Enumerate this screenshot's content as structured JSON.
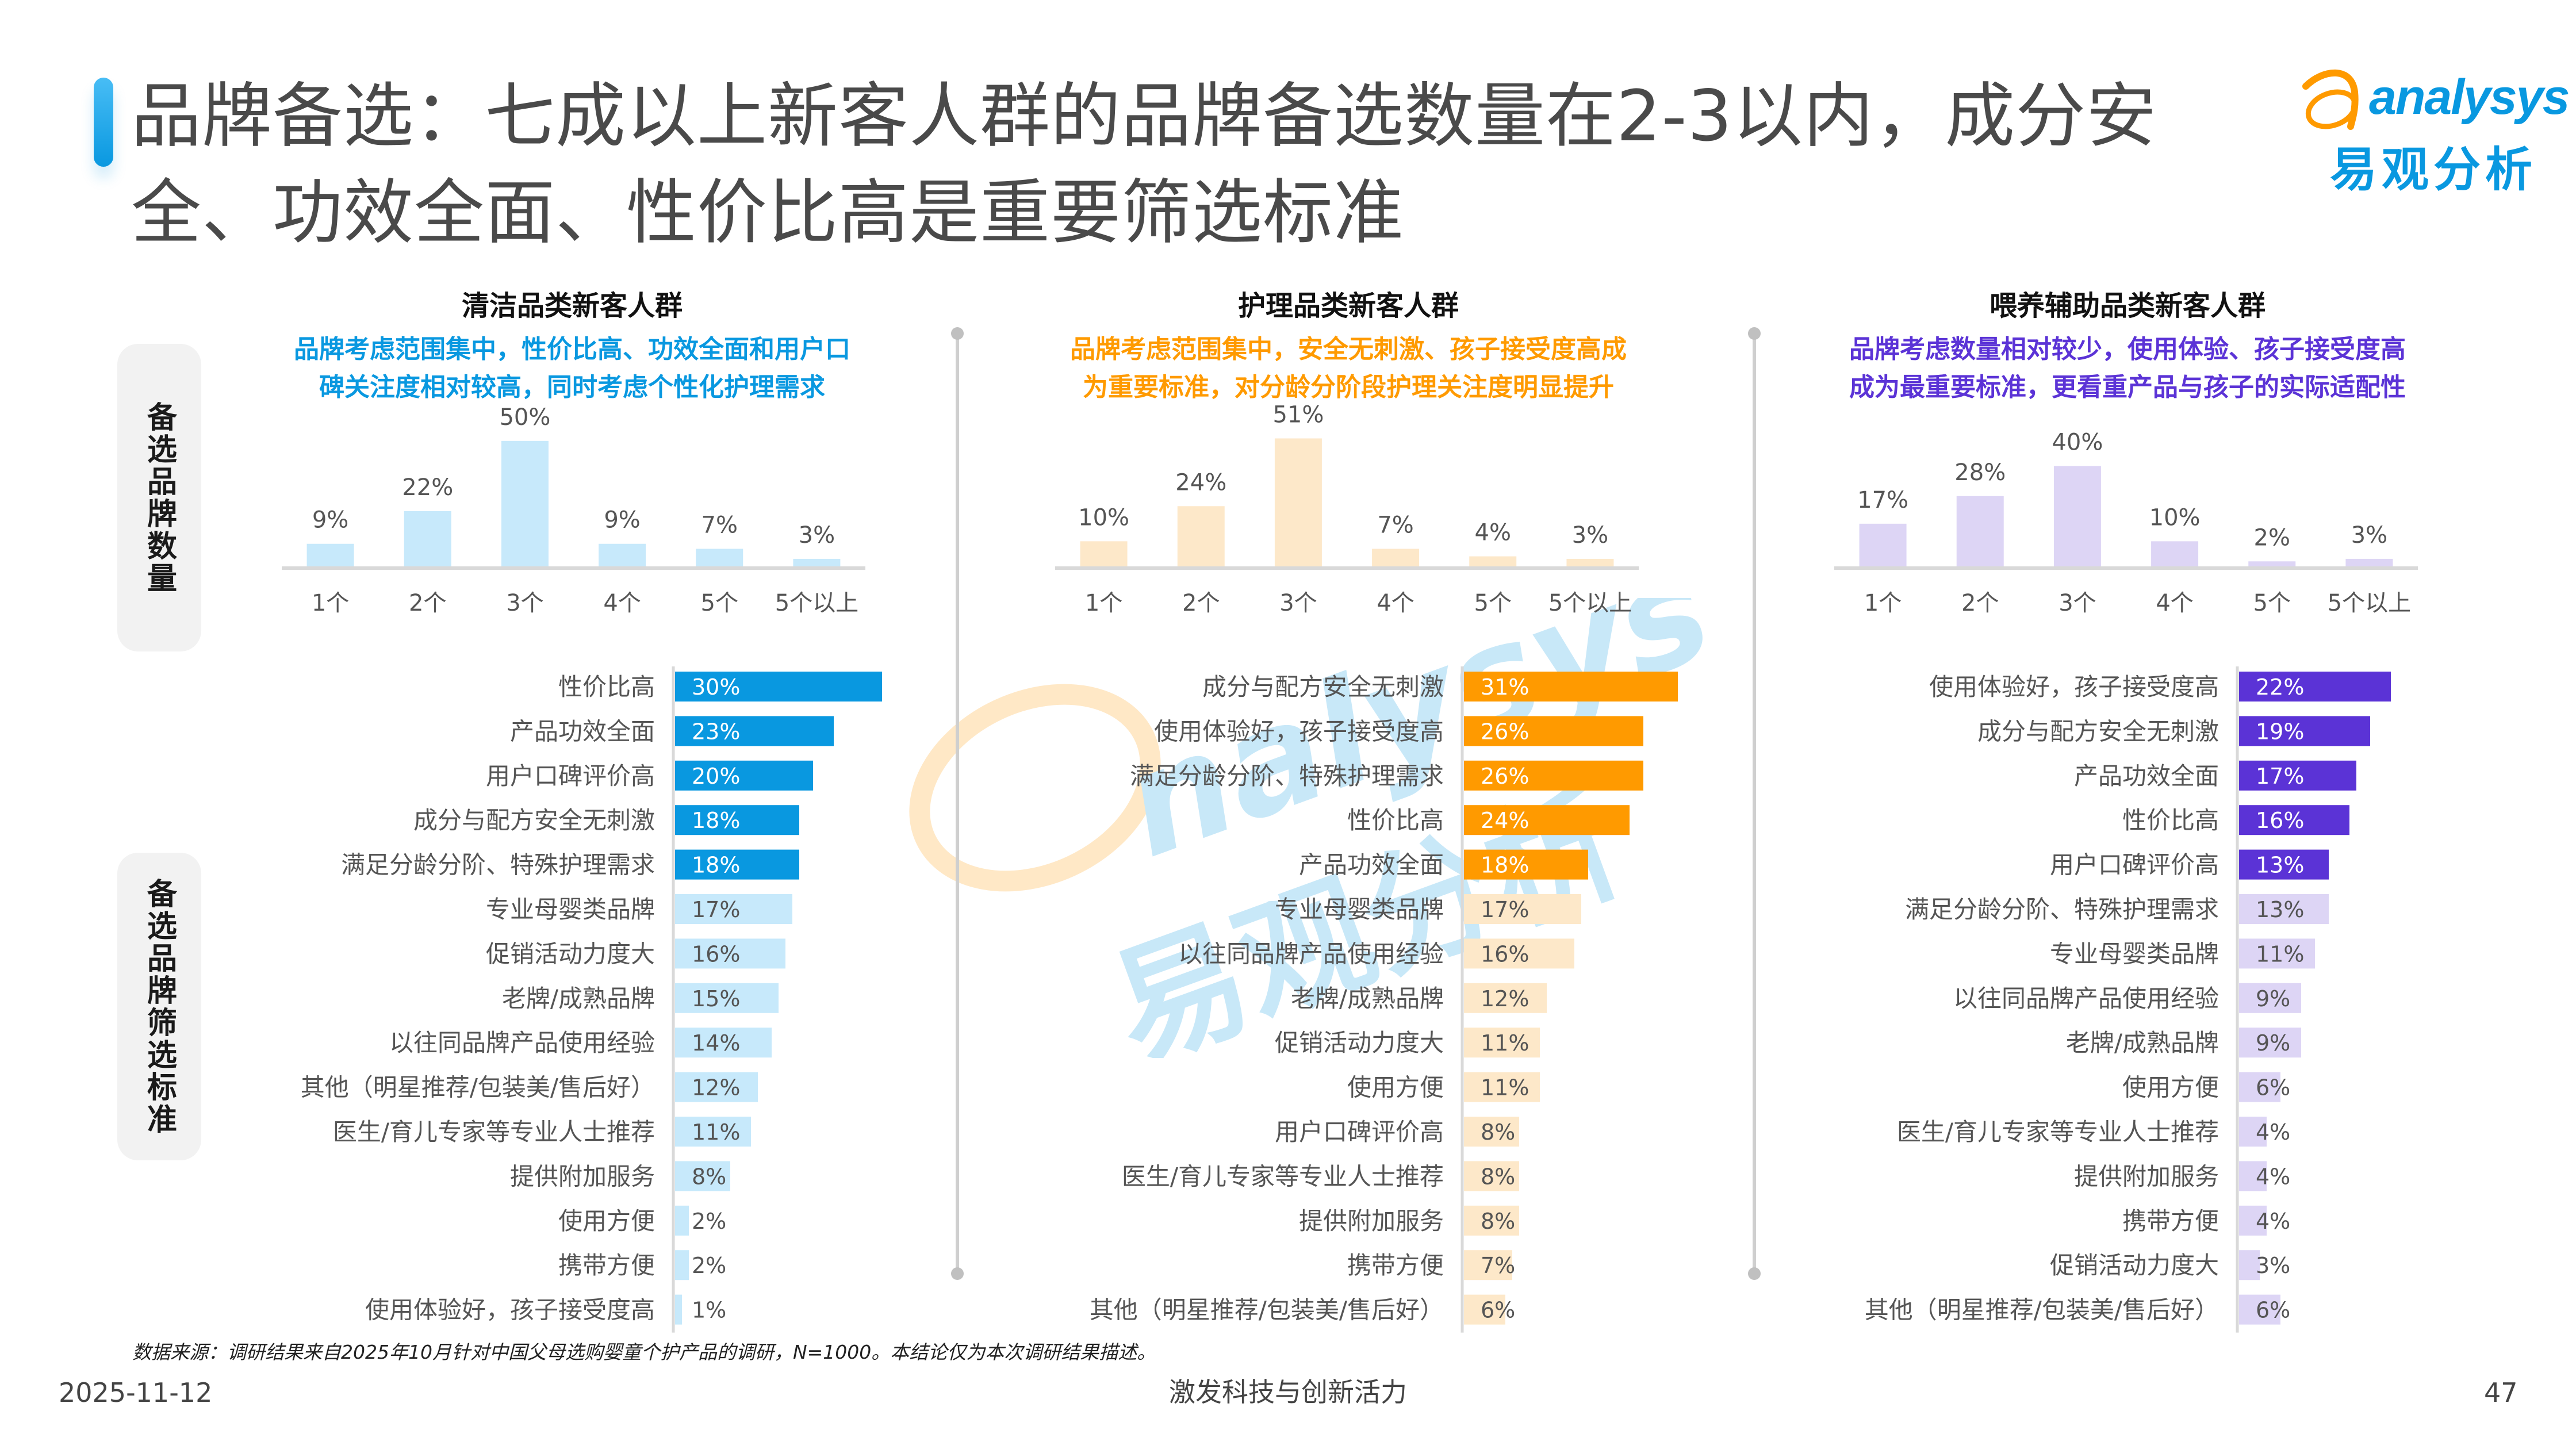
{
  "header": {
    "title": "品牌备选：七成以上新客人群的品牌备选数量在2-3以内，成分安全、功效全面、性价比高是重要筛选标准",
    "logo_en": "analysys",
    "logo_cn": "易观分析"
  },
  "side_labels": {
    "count": "备选品牌数量",
    "criteria": "备选品牌筛选标准"
  },
  "colors": {
    "clean_dark": "#0998e0",
    "clean_light": "#c7e9fb",
    "care_dark": "#ff9a00",
    "care_light": "#fde8c9",
    "feed_dark": "#5b33d6",
    "feed_light": "#ddd5f5",
    "axis": "#d9d9d9"
  },
  "watermark": {
    "en": "nalysys",
    "cn": "易观分析"
  },
  "chart_data": [
    {
      "id": "clean",
      "type": "bar",
      "title": "清洁品类新客人群",
      "subtitle": "品牌考虑范围集中，性价比高、功效全面和用户口碑关注度相对较高，同时考虑个性化护理需求",
      "subtitle_lines": [
        "品牌考虑范围集中，性价比高、功效全面和用户口",
        "碑关注度相对较高，同时考虑个性化护理需求"
      ],
      "subtitle_color": "#0998e0",
      "categories": [
        "1个",
        "2个",
        "3个",
        "4个",
        "5个",
        "5个以上"
      ],
      "values": [
        9,
        22,
        50,
        9,
        7,
        3
      ],
      "labels": [
        "9%",
        "22%",
        "50%",
        "9%",
        "7%",
        "3%"
      ],
      "ylim": [
        0,
        55
      ]
    },
    {
      "id": "care",
      "type": "bar",
      "title": "护理品类新客人群",
      "subtitle": "品牌考虑范围集中，安全无刺激、孩子接受度高成为重要标准，对分龄分阶段护理关注度明显提升",
      "subtitle_lines": [
        "品牌考虑范围集中，安全无刺激、孩子接受度高成",
        "为重要标准，对分龄分阶段护理关注度明显提升"
      ],
      "subtitle_color": "#ff9a00",
      "categories": [
        "1个",
        "2个",
        "3个",
        "4个",
        "5个",
        "5个以上"
      ],
      "values": [
        10,
        24,
        51,
        7,
        4,
        3
      ],
      "labels": [
        "10%",
        "24%",
        "51%",
        "7%",
        "4%",
        "3%"
      ],
      "ylim": [
        0,
        55
      ]
    },
    {
      "id": "feed",
      "type": "bar",
      "title": "喂养辅助品类新客人群",
      "subtitle": "品牌考虑数量相对较少，使用体验、孩子接受度高成为最重要标准，更看重产品与孩子的实际适配性",
      "subtitle_lines": [
        "品牌考虑数量相对较少，使用体验、孩子接受度高",
        "成为最重要标准，更看重产品与孩子的实际适配性"
      ],
      "subtitle_color": "#5b33d6",
      "categories": [
        "1个",
        "2个",
        "3个",
        "4个",
        "5个",
        "5个以上"
      ],
      "values": [
        17,
        28,
        40,
        10,
        2,
        3
      ],
      "labels": [
        "17%",
        "28%",
        "40%",
        "10%",
        "2%",
        "3%"
      ],
      "ylim": [
        0,
        55
      ]
    },
    {
      "id": "clean_criteria",
      "type": "bar",
      "orientation": "horizontal",
      "highlight_top": 5,
      "categories": [
        "性价比高",
        "产品功效全面",
        "用户口碑评价高",
        "成分与配方安全无刺激",
        "满足分龄分阶、特殊护理需求",
        "专业母婴类品牌",
        "促销活动力度大",
        "老牌/成熟品牌",
        "以往同品牌产品使用经验",
        "其他（明星推荐/包装美/售后好）",
        "医生/育儿专家等专业人士推荐",
        "提供附加服务",
        "使用方便",
        "携带方便",
        "使用体验好，孩子接受度高"
      ],
      "values": [
        30,
        23,
        20,
        18,
        18,
        17,
        16,
        15,
        14,
        12,
        11,
        8,
        2,
        2,
        1
      ],
      "labels": [
        "30%",
        "23%",
        "20%",
        "18%",
        "18%",
        "17%",
        "16%",
        "15%",
        "14%",
        "12%",
        "11%",
        "8%",
        "2%",
        "2%",
        "1%"
      ],
      "xlim": [
        0,
        33
      ]
    },
    {
      "id": "care_criteria",
      "type": "bar",
      "orientation": "horizontal",
      "highlight_top": 5,
      "categories": [
        "成分与配方安全无刺激",
        "使用体验好，孩子接受度高",
        "满足分龄分阶、特殊护理需求",
        "性价比高",
        "产品功效全面",
        "专业母婴类品牌",
        "以往同品牌产品使用经验",
        "老牌/成熟品牌",
        "促销活动力度大",
        "使用方便",
        "用户口碑评价高",
        "医生/育儿专家等专业人士推荐",
        "提供附加服务",
        "携带方便",
        "其他（明星推荐/包装美/售后好）"
      ],
      "values": [
        31,
        26,
        26,
        24,
        18,
        17,
        16,
        12,
        11,
        11,
        8,
        8,
        8,
        7,
        6
      ],
      "labels": [
        "31%",
        "26%",
        "26%",
        "24%",
        "18%",
        "17%",
        "16%",
        "12%",
        "11%",
        "11%",
        "8%",
        "8%",
        "8%",
        "7%",
        "6%"
      ],
      "xlim": [
        0,
        33
      ]
    },
    {
      "id": "feed_criteria",
      "type": "bar",
      "orientation": "horizontal",
      "highlight_top": 5,
      "categories": [
        "使用体验好，孩子接受度高",
        "成分与配方安全无刺激",
        "产品功效全面",
        "性价比高",
        "用户口碑评价高",
        "满足分龄分阶、特殊护理需求",
        "专业母婴类品牌",
        "以往同品牌产品使用经验",
        "老牌/成熟品牌",
        "使用方便",
        "医生/育儿专家等专业人士推荐",
        "提供附加服务",
        "携带方便",
        "促销活动力度大",
        "其他（明星推荐/包装美/售后好）"
      ],
      "values": [
        22,
        19,
        17,
        16,
        13,
        13,
        11,
        9,
        9,
        6,
        4,
        4,
        4,
        3,
        6
      ],
      "labels": [
        "22%",
        "19%",
        "17%",
        "16%",
        "13%",
        "13%",
        "11%",
        "9%",
        "9%",
        "6%",
        "4%",
        "4%",
        "4%",
        "3%",
        "6%"
      ],
      "xlim": [
        0,
        33
      ]
    }
  ],
  "footer": {
    "source": "数据来源：调研结果来自2025年10月针对中国父母选购婴童个护产品的调研，N=1000。本结论仅为本次调研结果描述。",
    "date": "2025-11-12",
    "theme": "激发科技与创新活力",
    "page": "47"
  }
}
